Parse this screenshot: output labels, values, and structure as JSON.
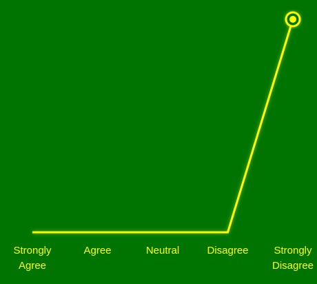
{
  "chart_data": {
    "type": "line",
    "categories": [
      [
        "Strongly",
        "Agree"
      ],
      [
        "Agree"
      ],
      [
        "Neutral"
      ],
      [
        "Disagree"
      ],
      [
        "Strongly",
        "Disagree"
      ]
    ],
    "series": [
      {
        "values": [
          0,
          0,
          0,
          0,
          1
        ]
      }
    ],
    "ylim": [
      0,
      1
    ],
    "grid": false,
    "legend": "none",
    "colors": {
      "background": "#007400",
      "line": "#ffff00",
      "label": "#ffff00",
      "glow": "#c8ff4a"
    }
  }
}
